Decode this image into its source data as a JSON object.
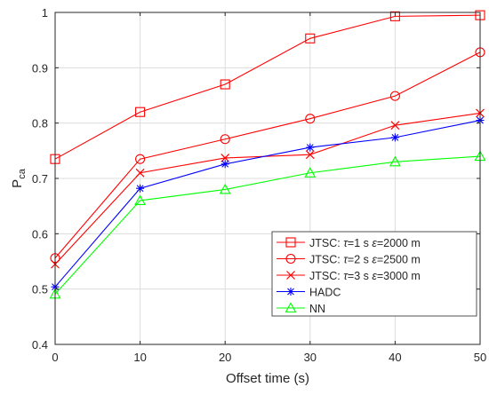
{
  "chart_data": {
    "type": "line",
    "xlabel": "Offset time (s)",
    "ylabel_main": "P",
    "ylabel_sub": "ca",
    "xlim": [
      0,
      50
    ],
    "ylim": [
      0.4,
      1.0
    ],
    "grid": true,
    "legend_position": "bottom-right",
    "x": [
      0,
      10,
      20,
      30,
      40,
      50
    ],
    "x_ticks": [
      "0",
      "10",
      "20",
      "30",
      "40",
      "50"
    ],
    "y_tick_values": [
      0.4,
      0.5,
      0.6,
      0.7,
      0.8,
      0.9,
      1.0
    ],
    "y_ticks": [
      "0.4",
      "0.5",
      "0.6",
      "0.7",
      "0.8",
      "0.9",
      "1"
    ],
    "series": [
      {
        "name_parts": [
          "JTSC: ",
          "τ",
          "=1 s ",
          "ε",
          "=2000 m"
        ],
        "color": "#ff0000",
        "marker": "square",
        "values": [
          0.735,
          0.82,
          0.87,
          0.953,
          0.993,
          0.995
        ]
      },
      {
        "name_parts": [
          "JTSC: ",
          "τ",
          "=2 s ",
          "ε",
          "=2500 m"
        ],
        "color": "#ff0000",
        "marker": "circle",
        "values": [
          0.556,
          0.735,
          0.771,
          0.808,
          0.849,
          0.928
        ]
      },
      {
        "name_parts": [
          "JTSC: ",
          "τ",
          "=3 s ",
          "ε",
          "=3000 m"
        ],
        "color": "#ff0000",
        "marker": "x",
        "values": [
          0.545,
          0.71,
          0.737,
          0.743,
          0.796,
          0.818
        ]
      },
      {
        "name_parts": [
          "HADC"
        ],
        "color": "#0000ff",
        "marker": "asterisk",
        "values": [
          0.504,
          0.682,
          0.726,
          0.756,
          0.774,
          0.805
        ]
      },
      {
        "name_parts": [
          "NN"
        ],
        "color": "#00ff00",
        "marker": "triangle",
        "values": [
          0.491,
          0.66,
          0.68,
          0.71,
          0.73,
          0.74
        ]
      }
    ]
  }
}
